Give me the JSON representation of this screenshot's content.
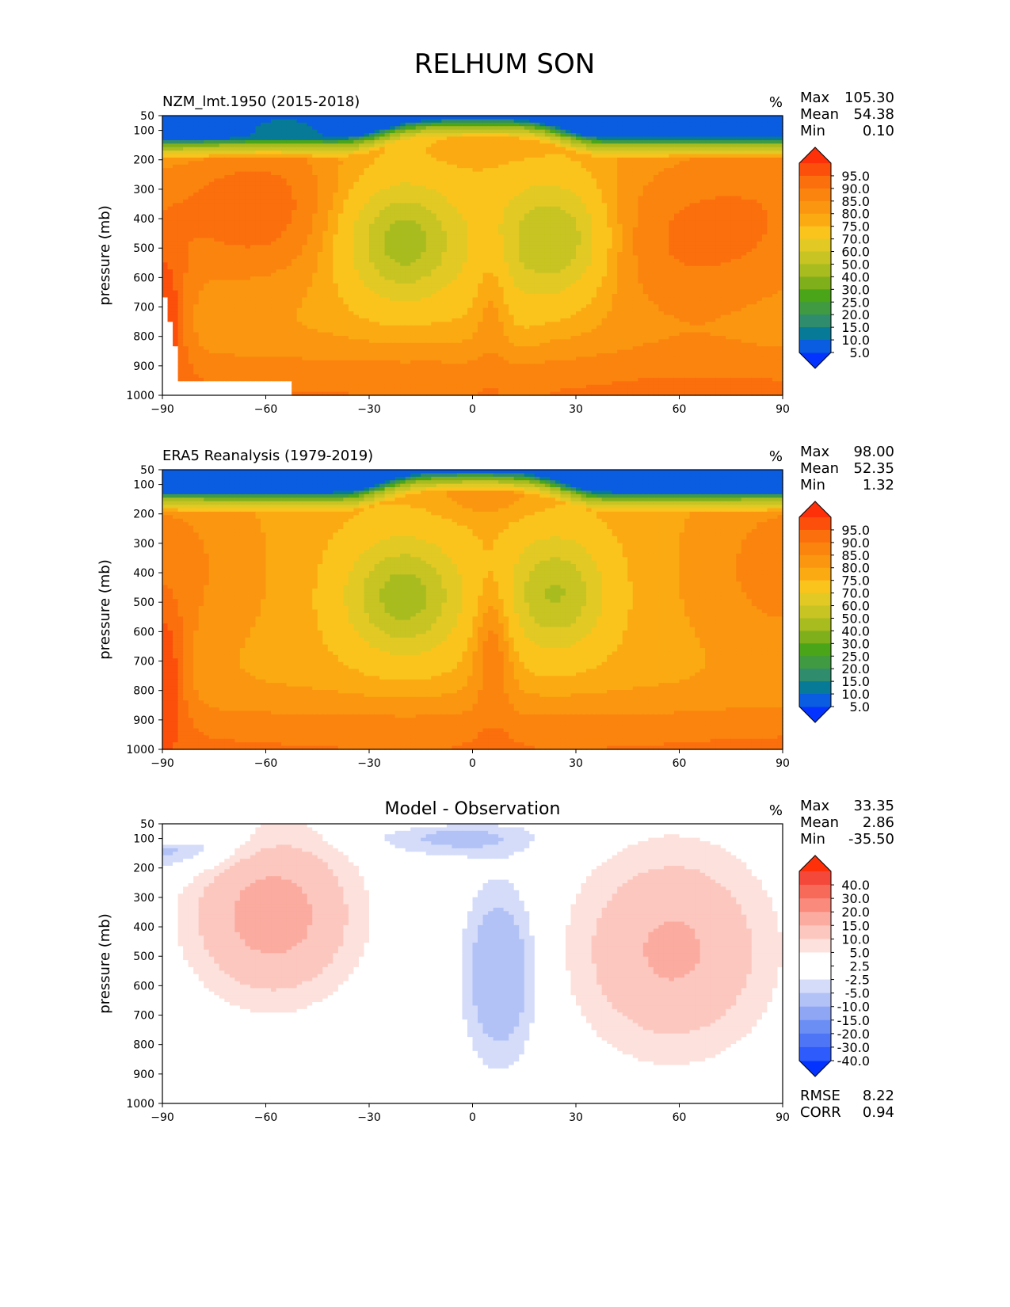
{
  "figure_title": "RELHUM SON",
  "colors": {
    "abs_levels": [
      "#0433ff",
      "#0a5ce0",
      "#067a97",
      "#2f8c6c",
      "#3f9a42",
      "#4aa518",
      "#7fb01c",
      "#a9bc1f",
      "#c7c423",
      "#e2c924",
      "#fac41d",
      "#fbaa12",
      "#fb9610",
      "#fb840e",
      "#fb6f0d",
      "#fb4f0b",
      "#fe300a"
    ],
    "diff_levels": [
      "#0433ff",
      "#2e5bfb",
      "#4f75f7",
      "#6b8ef5",
      "#8fa6f5",
      "#b2c2f6",
      "#d4dcfa",
      "#ffffff",
      "#ffffff",
      "#fde1dc",
      "#fcc7bf",
      "#fbab9f",
      "#f98a7c",
      "#f76a5a",
      "#f4483a",
      "#fe300a"
    ]
  },
  "chart_data": [
    {
      "type": "heatmap",
      "id": "model",
      "title": "NZM_lmt.1950 (2015-2018)",
      "units": "%",
      "stats": [
        {
          "label": "Max",
          "value": "105.30"
        },
        {
          "label": "Mean",
          "value": "54.38"
        },
        {
          "label": "Min",
          "value": "0.10"
        }
      ],
      "xlabel": "",
      "ylabel": "pressure (mb)",
      "xlim": [
        -90,
        90
      ],
      "ylim": [
        1000,
        50
      ],
      "x_ticks": [
        "−90",
        "−60",
        "−30",
        "0",
        "30",
        "60",
        "90"
      ],
      "y_ticks": [
        "50",
        "100",
        "200",
        "300",
        "400",
        "500",
        "600",
        "700",
        "800",
        "900",
        "1000"
      ],
      "colorbar_levels": [
        "95.0",
        "90.0",
        "85.0",
        "80.0",
        "75.0",
        "70.0",
        "60.0",
        "50.0",
        "40.0",
        "30.0",
        "25.0",
        "20.0",
        "15.0",
        "10.0",
        "5.0"
      ],
      "field": "model"
    },
    {
      "type": "heatmap",
      "id": "obs",
      "title": "ERA5 Reanalysis (1979-2019)",
      "units": "%",
      "stats": [
        {
          "label": "Max",
          "value": "98.00"
        },
        {
          "label": "Mean",
          "value": "52.35"
        },
        {
          "label": "Min",
          "value": "1.32"
        }
      ],
      "xlabel": "",
      "ylabel": "pressure (mb)",
      "xlim": [
        -90,
        90
      ],
      "ylim": [
        1000,
        50
      ],
      "x_ticks": [
        "−90",
        "−60",
        "−30",
        "0",
        "30",
        "60",
        "90"
      ],
      "y_ticks": [
        "50",
        "100",
        "200",
        "300",
        "400",
        "500",
        "600",
        "700",
        "800",
        "900",
        "1000"
      ],
      "colorbar_levels": [
        "95.0",
        "90.0",
        "85.0",
        "80.0",
        "75.0",
        "70.0",
        "60.0",
        "50.0",
        "40.0",
        "30.0",
        "25.0",
        "20.0",
        "15.0",
        "10.0",
        "5.0"
      ],
      "field": "obs"
    },
    {
      "type": "heatmap",
      "id": "diff",
      "title": "Model - Observation",
      "units": "%",
      "stats": [
        {
          "label": "Max",
          "value": "33.35"
        },
        {
          "label": "Mean",
          "value": "2.86"
        },
        {
          "label": "Min",
          "value": "-35.50"
        }
      ],
      "extra_stats": [
        {
          "label": "RMSE",
          "value": "8.22"
        },
        {
          "label": "CORR",
          "value": "0.94"
        }
      ],
      "xlabel": "",
      "ylabel": "pressure (mb)",
      "xlim": [
        -90,
        90
      ],
      "ylim": [
        1000,
        50
      ],
      "x_ticks": [
        "−90",
        "−60",
        "−30",
        "0",
        "30",
        "60",
        "90"
      ],
      "y_ticks": [
        "50",
        "100",
        "200",
        "300",
        "400",
        "500",
        "600",
        "700",
        "800",
        "900",
        "1000"
      ],
      "colorbar_levels": [
        "40.0",
        "30.0",
        "20.0",
        "15.0",
        "10.0",
        "5.0",
        "2.5",
        "-2.5",
        "-5.0",
        "-10.0",
        "-15.0",
        "-20.0",
        "-30.0",
        "-40.0"
      ],
      "field": "diff"
    }
  ]
}
